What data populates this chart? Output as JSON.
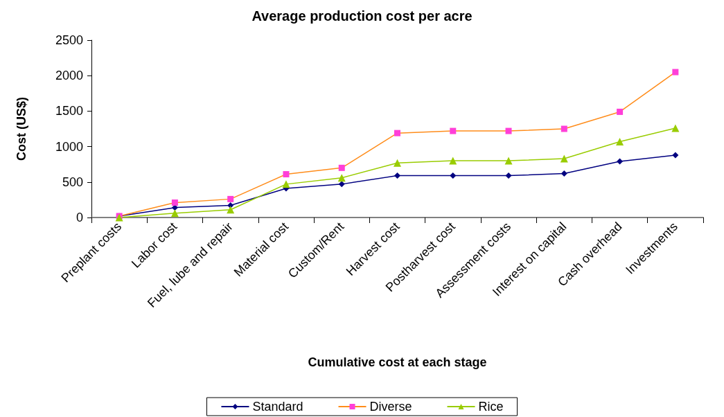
{
  "chart_data": {
    "type": "line",
    "title": "Average production cost per acre",
    "xlabel": "Cumulative cost at each stage",
    "ylabel": "Cost (US$)",
    "categories": [
      "Preplant costs",
      "Labor cost",
      "Fuel, lube and repair",
      "Material cost",
      "Custom/Rent",
      "Harvest cost",
      "Postharvest cost",
      "Assessment costs",
      "Interest on capital",
      "Cash overhead",
      "Investments"
    ],
    "series": [
      {
        "name": "Standard",
        "color": "#000080",
        "marker": "diamond",
        "values": [
          20,
          140,
          170,
          410,
          470,
          590,
          590,
          590,
          620,
          790,
          880
        ]
      },
      {
        "name": "Diverse",
        "color": "#ff8c1a",
        "colors": [
          "#ff3fd8",
          "#ff3fd8",
          "#ff3fd8",
          "#ff3fd8",
          "#ff3fd8",
          "#ff3fd8",
          "#ff3fd8",
          "#ff3fd8",
          "#ff3fd8",
          "#ff3fd8",
          "#ff3fd8"
        ],
        "marker": "square",
        "values": [
          20,
          210,
          260,
          610,
          700,
          1190,
          1220,
          1220,
          1250,
          1490,
          2050
        ]
      },
      {
        "name": "Rice",
        "color": "#99cc00",
        "marker": "triangle",
        "values": [
          0,
          60,
          110,
          470,
          560,
          770,
          800,
          800,
          830,
          1070,
          1260
        ]
      }
    ],
    "ylim": [
      0,
      2500
    ],
    "yticks": [
      0,
      500,
      1000,
      1500,
      2000,
      2500
    ],
    "grid": false,
    "legend": "bottom",
    "line_style": "solid"
  }
}
